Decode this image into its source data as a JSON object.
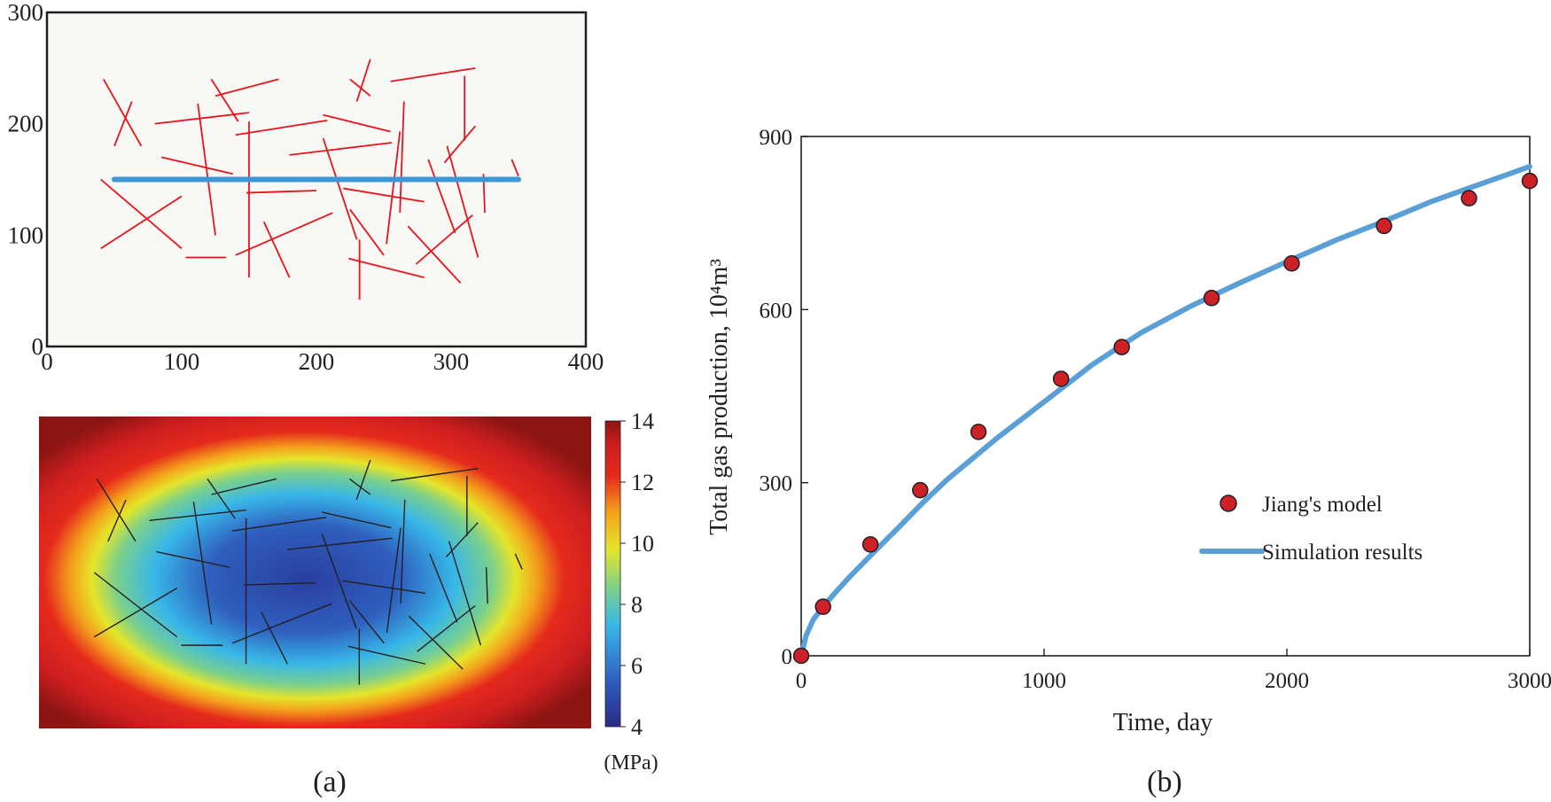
{
  "panel_labels": {
    "a": "(a)",
    "b": "(b)"
  },
  "fracture_map": {
    "type": "scatter",
    "x_ticks": [
      "0",
      "100",
      "200",
      "300",
      "400"
    ],
    "y_ticks": [
      "0",
      "100",
      "200",
      "300"
    ],
    "xlim": [
      0,
      400
    ],
    "ylim": [
      0,
      300
    ],
    "background_color": "#f8f8f4",
    "fracture_color": "#e8141e",
    "well_color": "#3c97d3",
    "well": {
      "x1": 50,
      "y1": 150,
      "x2": 350,
      "y2": 150
    },
    "fractures": [
      [
        42,
        240,
        70,
        180
      ],
      [
        63,
        220,
        50,
        180
      ],
      [
        80,
        200,
        150,
        210
      ],
      [
        85,
        170,
        138,
        155
      ],
      [
        112,
        218,
        125,
        100
      ],
      [
        122,
        240,
        142,
        202
      ],
      [
        125,
        225,
        172,
        240
      ],
      [
        140,
        190,
        208,
        203
      ],
      [
        150,
        202,
        150,
        62
      ],
      [
        148,
        138,
        200,
        140
      ],
      [
        133,
        80,
        103,
        80
      ],
      [
        140,
        82,
        212,
        120
      ],
      [
        161,
        112,
        180,
        62
      ],
      [
        205,
        187,
        230,
        96
      ],
      [
        180,
        172,
        256,
        183
      ],
      [
        205,
        208,
        255,
        193
      ],
      [
        225,
        240,
        240,
        225
      ],
      [
        230,
        220,
        240,
        258
      ],
      [
        255,
        238,
        318,
        250
      ],
      [
        310,
        243,
        310,
        185
      ],
      [
        345,
        168,
        350,
        153
      ],
      [
        295,
        165,
        318,
        198
      ],
      [
        265,
        220,
        262,
        120
      ],
      [
        225,
        123,
        250,
        82
      ],
      [
        252,
        92,
        262,
        193
      ],
      [
        283,
        168,
        303,
        102
      ],
      [
        324,
        155,
        325,
        120
      ],
      [
        297,
        180,
        320,
        80
      ],
      [
        274,
        74,
        316,
        118
      ],
      [
        268,
        108,
        307,
        57
      ],
      [
        220,
        142,
        280,
        130
      ],
      [
        40,
        150,
        100,
        88
      ],
      [
        40,
        88,
        100,
        135
      ],
      [
        224,
        79,
        280,
        62
      ],
      [
        232,
        96,
        232,
        42
      ]
    ]
  },
  "pressure_map": {
    "type": "heatmap",
    "colorbar_ticks": [
      "14",
      "12",
      "10",
      "8",
      "6",
      "4"
    ],
    "colorbar_unit": "(MPa)",
    "value_range": [
      4,
      14
    ],
    "colormap": [
      "#2a2a86",
      "#2f5fbf",
      "#38b7e8",
      "#7bd08c",
      "#e5e52a",
      "#f4a21c",
      "#e52a1c",
      "#cd1e20",
      "#8c1512"
    ],
    "fracture_color": "#231f20"
  },
  "chart_data": {
    "type": "line",
    "xlabel": "Time, day",
    "ylabel": "Total gas production, 10⁴m³",
    "xlim": [
      0,
      3000
    ],
    "ylim": [
      0,
      900
    ],
    "x_ticks": [
      "0",
      "1000",
      "2000",
      "3000"
    ],
    "y_ticks": [
      "0",
      "300",
      "600",
      "900"
    ],
    "legend_position": "center-right",
    "series": [
      {
        "name": "Jiang's model",
        "kind": "scatter",
        "color": "#cb2127",
        "x": [
          0,
          90,
          285,
          490,
          730,
          1070,
          1320,
          1690,
          2020,
          2400,
          2750,
          3000
        ],
        "y": [
          0,
          85,
          193,
          287,
          388,
          480,
          535,
          620,
          680,
          745,
          793,
          823
        ]
      },
      {
        "name": "Simulation results",
        "kind": "line",
        "color": "#5a9fd6",
        "x": [
          0,
          20,
          50,
          100,
          150,
          200,
          300,
          400,
          500,
          600,
          800,
          1000,
          1200,
          1400,
          1600,
          1800,
          2000,
          2200,
          2400,
          2600,
          2800,
          3000
        ],
        "y": [
          0,
          35,
          63,
          90,
          114,
          137,
          180,
          222,
          265,
          305,
          375,
          440,
          505,
          560,
          605,
          645,
          683,
          720,
          753,
          788,
          818,
          848
        ]
      }
    ]
  }
}
